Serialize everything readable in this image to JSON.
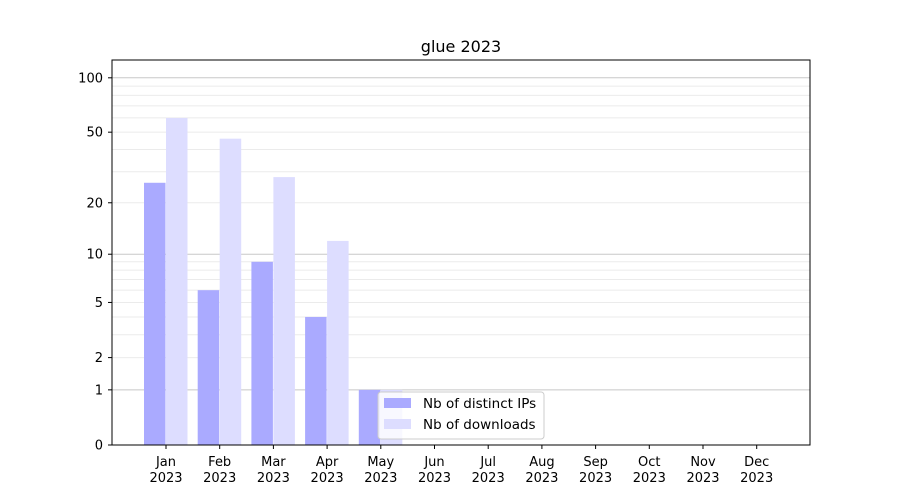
{
  "chart_data": {
    "type": "bar",
    "title": "glue 2023",
    "xlabel": "",
    "ylabel": "",
    "y_scale": "log(1+x)",
    "ylim": [
      0,
      120
    ],
    "grid": "horizontal major and minor",
    "legend_placement": "lower-center",
    "categories": [
      "Jan\n2023",
      "Feb\n2023",
      "Mar\n2023",
      "Apr\n2023",
      "May\n2023",
      "Jun\n2023",
      "Jul\n2023",
      "Aug\n2023",
      "Sep\n2023",
      "Oct\n2023",
      "Nov\n2023",
      "Dec\n2023"
    ],
    "y_ticks": [
      0,
      1,
      2,
      5,
      10,
      20,
      50,
      100
    ],
    "series": [
      {
        "name": "Nb of distinct IPs",
        "color": "#aaaaff",
        "values": [
          26,
          6,
          9,
          4,
          1,
          0,
          0,
          0,
          0,
          0,
          0,
          0
        ]
      },
      {
        "name": "Nb of downloads",
        "color": "#ddddff",
        "values": [
          60,
          46,
          28,
          12,
          1,
          0,
          0,
          0,
          0,
          0,
          0,
          0
        ]
      }
    ]
  }
}
